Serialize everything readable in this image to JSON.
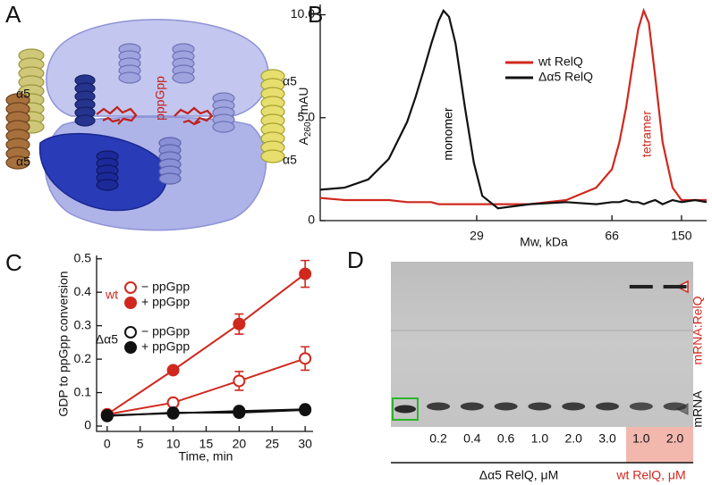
{
  "panel_a": {
    "letter": "A",
    "helix_labels": [
      "α5",
      "α5",
      "α5",
      "α5"
    ],
    "ligand": "pppGpp"
  },
  "chart_data": [
    {
      "type": "line",
      "letter": "B",
      "ylabel": "A",
      "ylabel_sub": "260",
      "ylabel_suffix": ", mAU",
      "xlabel": "Mw, kDa",
      "log_x": true,
      "xlim": [
        11.2,
        200
      ],
      "xticks": [
        29,
        66,
        150
      ],
      "ylim": [
        0,
        10.5
      ],
      "yticks": [
        0,
        {
          "value": 5,
          "label": "5.0"
        },
        {
          "value": 10,
          "label": "10.0"
        }
      ],
      "legend": "upper center",
      "annotations": [
        {
          "text": "monomer",
          "color": "#000000"
        },
        {
          "text": "tetramer",
          "color": "#d0281e"
        }
      ],
      "x": [
        11.2,
        13,
        15,
        17,
        19,
        20,
        21,
        22,
        23,
        23.7,
        24.5,
        25.5,
        27,
        28.5,
        30,
        33,
        40,
        50,
        60,
        66,
        72,
        78,
        84,
        90,
        96,
        102,
        110,
        120,
        135,
        150,
        175,
        200
      ],
      "series": [
        {
          "name": "wt RelQ",
          "color": "#d0281e",
          "values": [
            1.1,
            1.0,
            1.0,
            1.0,
            0.9,
            0.9,
            0.9,
            0.9,
            0.8,
            0.8,
            0.8,
            0.8,
            0.8,
            0.8,
            0.8,
            0.8,
            0.8,
            1.0,
            1.6,
            2.5,
            3.8,
            5.5,
            7.5,
            9.3,
            10.2,
            9.6,
            7.0,
            3.8,
            1.6,
            1.0,
            1.0,
            1.0
          ]
        },
        {
          "name": "Δα5 RelQ",
          "color": "#111111",
          "values": [
            1.5,
            1.6,
            2.0,
            3.0,
            4.8,
            6.0,
            7.3,
            8.6,
            9.7,
            10.2,
            9.9,
            8.6,
            5.5,
            2.8,
            1.2,
            0.6,
            0.8,
            0.9,
            0.8,
            0.9,
            0.9,
            1.0,
            0.9,
            0.9,
            0.8,
            0.9,
            1.0,
            0.8,
            1.0,
            0.9,
            1.0,
            0.9
          ]
        }
      ]
    },
    {
      "type": "line",
      "letter": "C",
      "ylabel": "GDP to ppGpp conversion",
      "xlabel": "Time, min",
      "xlim": [
        -1.6,
        31.2
      ],
      "xticks": [
        0,
        5,
        10,
        15,
        20,
        25,
        30
      ],
      "ylim": [
        -0.016,
        0.51
      ],
      "yticks": [
        0,
        0.1,
        0.2,
        0.3,
        0.4,
        0.5
      ],
      "legend": "upper left",
      "x": [
        0,
        10,
        20,
        30
      ],
      "groups": [
        {
          "name": "wt",
          "color": "#d0281e",
          "series": [
            {
              "name": "− ppGpp",
              "marker": "open",
              "values": [
                0.035,
                0.07,
                0.135,
                0.202
              ],
              "errors": [
                0.005,
                0.008,
                0.028,
                0.035
              ]
            },
            {
              "name": "+ ppGpp",
              "marker": "filled",
              "values": [
                0.035,
                0.167,
                0.305,
                0.455
              ],
              "errors": [
                0.005,
                0.008,
                0.03,
                0.04
              ]
            }
          ]
        },
        {
          "name": "Δα5",
          "color": "#111111",
          "series": [
            {
              "name": "− ppGpp",
              "marker": "open",
              "values": [
                0.03,
                0.04,
                0.04,
                0.048
              ],
              "errors": [
                0.004,
                0.004,
                0.005,
                0.006
              ]
            },
            {
              "name": "+ ppGpp",
              "marker": "filled",
              "values": [
                0.032,
                0.038,
                0.045,
                0.05
              ],
              "errors": [
                0.004,
                0.004,
                0.005,
                0.006
              ]
            }
          ]
        }
      ]
    }
  ],
  "panel_d": {
    "letter": "D",
    "lanes": [
      "0.2",
      "0.4",
      "0.6",
      "1.0",
      "2.0",
      "3.0",
      "1.0",
      "2.0"
    ],
    "groups": [
      "Δα5 RelQ, μM",
      "wt RelQ, μM"
    ],
    "bands": [
      "mRNA:RelQ",
      "mRNA"
    ]
  }
}
